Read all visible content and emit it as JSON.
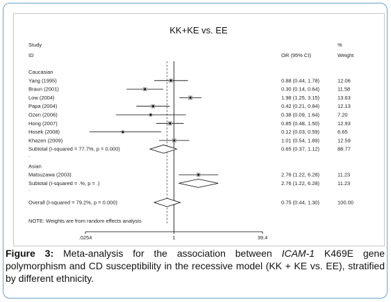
{
  "chart_data": {
    "type": "forest",
    "title": "KK+KE vs. EE",
    "columns": {
      "study": "Study",
      "id": "ID",
      "or": "OR (95% CI)",
      "weight_pct": "%",
      "weight": "Weight"
    },
    "groups": [
      {
        "name": "Caucasian",
        "studies": [
          {
            "id": "Yang (1995)",
            "or": 0.88,
            "lo": 0.44,
            "hi": 1.78,
            "label": "0.88 (0.44, 1.78)",
            "weight": "12.06"
          },
          {
            "id": "Braun (2001)",
            "or": 0.3,
            "lo": 0.14,
            "hi": 0.64,
            "label": "0.30 (0.14, 0.64)",
            "weight": "11.58"
          },
          {
            "id": "Low (2004)",
            "or": 1.98,
            "lo": 1.25,
            "hi": 3.15,
            "label": "1.98 (1.25, 3.15)",
            "weight": "13.63"
          },
          {
            "id": "Papa (2004)",
            "or": 0.42,
            "lo": 0.21,
            "hi": 0.84,
            "label": "0.42 (0.21, 0.84)",
            "weight": "12.13"
          },
          {
            "id": "Ozen (2006)",
            "or": 0.38,
            "lo": 0.09,
            "hi": 1.64,
            "label": "0.38 (0.09, 1.64)",
            "weight": "7.20"
          },
          {
            "id": "Hong (2007)",
            "or": 0.85,
            "lo": 0.48,
            "hi": 1.5,
            "label": "0.85 (0.48, 1.50)",
            "weight": "12.93"
          },
          {
            "id": "Hosek (2008)",
            "or": 0.12,
            "lo": 0.03,
            "hi": 0.59,
            "label": "0.12 (0.03, 0.59)",
            "weight": "6.65"
          },
          {
            "id": "Khazen (2009)",
            "or": 1.01,
            "lo": 0.54,
            "hi": 1.89,
            "label": "1.01 (0.54, 1.89)",
            "weight": "12.59"
          }
        ],
        "subtotal": {
          "id": "Subtotal  (I-squared = 77.7%, p = 0.000)",
          "or": 0.65,
          "lo": 0.37,
          "hi": 1.12,
          "label": "0.65 (0.37, 1.12)",
          "weight": "88.77"
        }
      },
      {
        "name": "Asian",
        "studies": [
          {
            "id": "Matsuzawa (2003)",
            "or": 2.76,
            "lo": 1.22,
            "hi": 6.28,
            "label": "2.76 (1.22, 6.28)",
            "weight": "11.23"
          }
        ],
        "subtotal": {
          "id": "Subtotal  (I-squared = .%, p = .)",
          "or": 2.76,
          "lo": 1.22,
          "hi": 6.28,
          "label": "2.76 (1.22, 6.28)",
          "weight": "11.23"
        }
      }
    ],
    "overall": {
      "id": "Overall  (I-squared = 79.2%, p = 0.000)",
      "or": 0.75,
      "lo": 0.44,
      "hi": 1.3,
      "label": "0.75 (0.44, 1.30)",
      "weight": "100.00"
    },
    "note": "NOTE: Weights are from random effects analysis",
    "x_ticks": [
      {
        "value": 0.0254,
        "label": ".0254"
      },
      {
        "value": 1,
        "label": "1"
      },
      {
        "value": 39.4,
        "label": "39.4"
      }
    ],
    "x_scale": "log",
    "xlim": [
      0.0254,
      39.4
    ]
  },
  "caption": {
    "label": "Figure 3:",
    "text_1": " Meta-analysis for the association between ",
    "gene": "ICAM-1",
    "text_2": " K469E gene polymorphism and CD susceptibility in the recessive model (KK + KE vs. EE), stratified by different ethnicity."
  }
}
